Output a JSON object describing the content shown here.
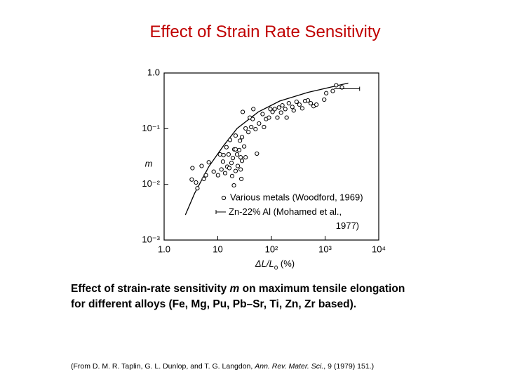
{
  "title": "Effect of Strain Rate Sensitivity",
  "chart_data": {
    "type": "scatter",
    "xlabel": [
      "ΔL/L",
      "o",
      " (%)"
    ],
    "ylabel": "m",
    "xscale": "log",
    "yscale": "log",
    "xlim": [
      1,
      10000
    ],
    "ylim": [
      0.001,
      1
    ],
    "xticks": [
      {
        "value": 1,
        "label": "1.0"
      },
      {
        "value": 10,
        "label": "10"
      },
      {
        "value": 100,
        "label": "10²"
      },
      {
        "value": 1000,
        "label": "10³"
      },
      {
        "value": 10000,
        "label": "10⁴"
      }
    ],
    "yticks": [
      {
        "value": 0.001,
        "label": "10⁻³"
      },
      {
        "value": 0.01,
        "label": "10⁻²"
      },
      {
        "value": 0.1,
        "label": "10⁻¹"
      },
      {
        "value": 1,
        "label": "1.0"
      }
    ],
    "series": [
      {
        "name": "Various metals (Woodford, 1969)",
        "color": "#000000",
        "x": [
          3.37,
          3.93,
          5.0,
          6.0,
          6.8,
          3.27,
          4.17,
          5.5,
          8.4,
          11.0,
          12.5,
          13.7,
          15.0,
          16.4,
          18.0,
          15.9,
          19.1,
          20.3,
          21.5,
          23.6,
          25.1,
          25.9,
          26.7,
          28.3,
          28.3,
          31.0,
          33.0,
          21.5,
          16.9,
          12.8,
          14.5,
          21.5,
          22.9,
          18.5,
          26.7,
          29.2,
          33.0,
          37.2,
          39.6,
          42.0,
          44.7,
          50.5,
          46.0,
          53.6,
          58.7,
          68.4,
          72.6,
          79.6,
          89.9,
          95.5,
          105,
          115,
          129,
          138,
          151,
          160,
          181,
          192,
          211,
          245,
          260,
          294,
          332,
          375,
          424,
          478,
          540,
          610,
          689,
          963,
          1050,
          1390,
          1610,
          2060,
          11.7,
          10.1,
          27.5,
          20.0
        ],
        "values": [
          0.0196,
          0.0108,
          0.0214,
          0.0146,
          0.0249,
          0.0122,
          0.0085,
          0.0125,
          0.0169,
          0.0345,
          0.0256,
          0.0159,
          0.0208,
          0.0196,
          0.0242,
          0.0345,
          0.0297,
          0.0425,
          0.0174,
          0.0214,
          0.0413,
          0.0608,
          0.0306,
          0.0264,
          0.0705,
          0.0479,
          0.0306,
          0.075,
          0.0627,
          0.0335,
          0.0465,
          0.0425,
          0.0345,
          0.0141,
          0.0185,
          0.2,
          0.101,
          0.0869,
          0.158,
          0.107,
          0.149,
          0.098,
          0.225,
          0.0356,
          0.124,
          0.183,
          0.107,
          0.149,
          0.158,
          0.225,
          0.2,
          0.225,
          0.158,
          0.24,
          0.194,
          0.262,
          0.225,
          0.158,
          0.286,
          0.246,
          0.212,
          0.304,
          0.27,
          0.232,
          0.313,
          0.322,
          0.286,
          0.254,
          0.27,
          0.332,
          0.434,
          0.475,
          0.603,
          0.551,
          0.0185,
          0.0146,
          0.0125,
          0.0096
        ]
      },
      {
        "name": "Zn-22% Al (Mohamed et al., 1977)",
        "color": "#000000",
        "x_low": [
          1470
        ],
        "x_high": [
          4400
        ],
        "values": [
          0.52
        ]
      }
    ],
    "trend": {
      "color": "#000000",
      "x": [
        2.49,
        3.7,
        6.8,
        12.5,
        22.9,
        57.0,
        142,
        478,
        2700
      ],
      "values": [
        0.00283,
        0.0069,
        0.0208,
        0.0479,
        0.101,
        0.2,
        0.313,
        0.448,
        0.659
      ]
    }
  },
  "caption": [
    "Effect of strain-rate sensitivity ",
    "m",
    " on maximum tensile elongation for different alloys (Fe, Mg, Pu, Pb–Sr, Ti, Zn, Zr based)."
  ],
  "citation": [
    "(From D. M. R. Taplin, G. L. Dunlop, and T. G. Langdon, ",
    "Ann. Rev. Mater. Sci.",
    ", 9 (1979) 151.)"
  ]
}
